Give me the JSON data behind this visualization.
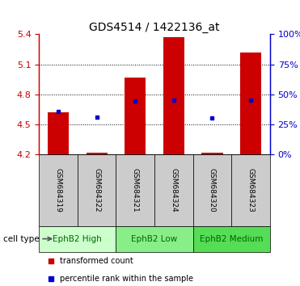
{
  "title": "GDS4514 / 1422136_at",
  "samples": [
    "GSM684319",
    "GSM684322",
    "GSM684321",
    "GSM684324",
    "GSM684320",
    "GSM684323"
  ],
  "red_bar_top": [
    4.62,
    4.22,
    4.97,
    5.37,
    4.22,
    5.22
  ],
  "red_bar_bottom": 4.2,
  "blue_dot_y": [
    4.63,
    4.57,
    4.73,
    4.745,
    4.565,
    4.74
  ],
  "ylim": [
    4.2,
    5.4
  ],
  "yticks_left": [
    4.2,
    4.5,
    4.8,
    5.1,
    5.4
  ],
  "yticks_right_pct": [
    0,
    25,
    50,
    75,
    100
  ],
  "yticks_right_vals": [
    4.2,
    4.5,
    4.8,
    5.1,
    5.4
  ],
  "cell_types": [
    {
      "label": "EphB2 High",
      "start": 0,
      "end": 2,
      "color": "#ccffcc"
    },
    {
      "label": "EphB2 Low",
      "start": 2,
      "end": 4,
      "color": "#88ee88"
    },
    {
      "label": "EphB2 Medium",
      "start": 4,
      "end": 6,
      "color": "#55dd55"
    }
  ],
  "red_color": "#cc0000",
  "blue_color": "#0000cc",
  "bar_bg_color": "#cccccc",
  "title_fontsize": 10,
  "tick_fontsize": 8,
  "sample_fontsize": 6.5,
  "cell_type_fontsize": 7.5,
  "legend_fontsize": 7,
  "cell_type_label": "cell type",
  "legend_red": "transformed count",
  "legend_blue": "percentile rank within the sample"
}
